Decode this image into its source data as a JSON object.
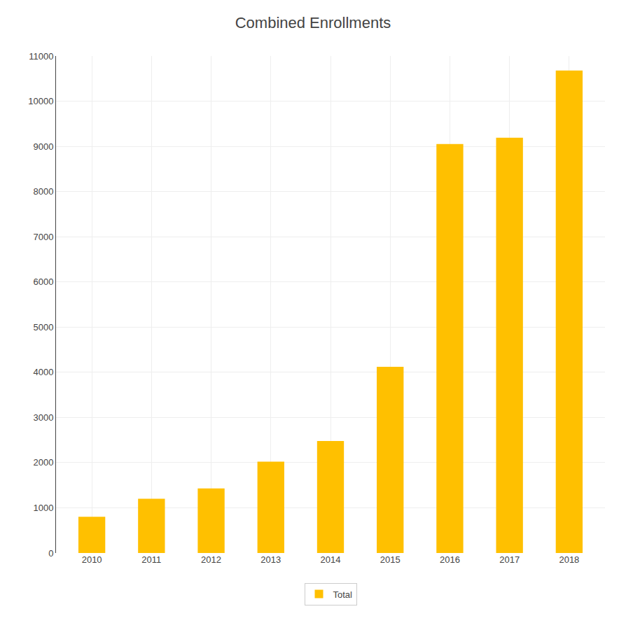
{
  "chart_data": {
    "type": "bar",
    "title": "Combined Enrollments",
    "categories": [
      "2010",
      "2011",
      "2012",
      "2013",
      "2014",
      "2015",
      "2016",
      "2017",
      "2018"
    ],
    "series": [
      {
        "name": "Total",
        "color": "#FFC000",
        "values": [
          800,
          1200,
          1430,
          2020,
          2480,
          4120,
          9050,
          9190,
          10680
        ]
      }
    ],
    "ylim": [
      0,
      11000
    ],
    "yticks": [
      0,
      1000,
      2000,
      3000,
      4000,
      5000,
      6000,
      7000,
      8000,
      9000,
      10000,
      11000
    ],
    "grid": true,
    "legend": "bottom"
  }
}
